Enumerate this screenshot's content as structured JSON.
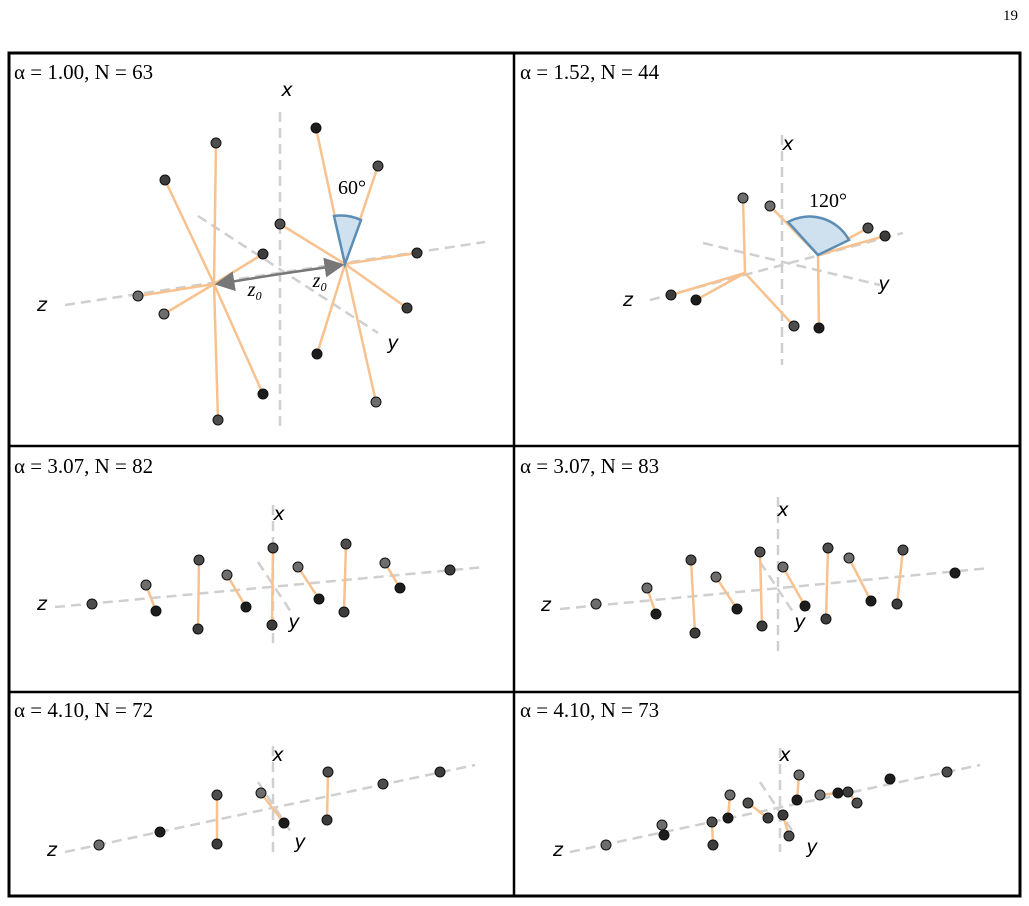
{
  "page_number": "19",
  "panels": [
    {
      "label": "α = 1.00,  N = 63",
      "axis_labels": {
        "x": "x",
        "y": "y",
        "z": "z"
      },
      "angle": "60°",
      "distance_labels": [
        "z₀",
        "z₀"
      ]
    },
    {
      "label": "α = 1.52,  N = 44",
      "axis_labels": {
        "x": "x",
        "y": "y",
        "z": "z"
      },
      "angle": "120°"
    },
    {
      "label": "α = 3.07,  N = 82",
      "axis_labels": {
        "x": "x",
        "y": "y",
        "z": "z"
      }
    },
    {
      "label": "α = 3.07,  N = 83",
      "axis_labels": {
        "x": "x",
        "y": "y",
        "z": "z"
      }
    },
    {
      "label": "α = 4.10,  N = 72",
      "axis_labels": {
        "x": "x",
        "y": "y",
        "z": "z"
      }
    },
    {
      "label": "α = 4.10,  N = 73",
      "axis_labels": {
        "x": "x",
        "y": "y",
        "z": "z"
      }
    }
  ]
}
